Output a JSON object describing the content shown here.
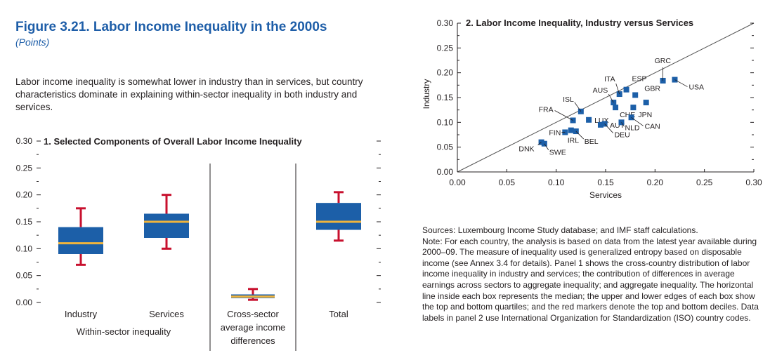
{
  "figure": {
    "title": "Figure 3.21.  Labor Income Inequality in the 2000s",
    "subtitle": "(Points)",
    "intro": "Labor income inequality is somewhat lower in industry than in services, but country characteristics dominate in explaining within-sector inequality in both industry and services."
  },
  "notes": {
    "sources": "Sources: Luxembourg Income Study database; and IMF staff calculations.",
    "note": "Note: For each country, the analysis is based on data from the latest year available during 2000–09. The measure of inequality used is generalized entropy based on disposable income (see Annex 3.4 for details). Panel 1 shows the cross-country distribution of labor income inequality in industry and services; the contribution of differences in average earnings across sectors to aggregate inequality; and aggregate inequality. The horizontal line inside each box represents the median; the upper and lower edges of each box show the top and bottom quartiles; and the red markers denote the top and bottom deciles. Data labels in panel 2 use International Organization for Standardization (ISO) country codes."
  },
  "colors": {
    "box": "#1c5fa8",
    "median": "#f0b43c",
    "whisker": "#c8102e",
    "marker": "#1c5fa8",
    "line": "#555555"
  },
  "chart_data": [
    {
      "type": "box",
      "title": "1. Selected Components of Overall Labor Income Inequality",
      "ylim": [
        0,
        0.3
      ],
      "yticks": [
        "0.00",
        "0.05",
        "0.10",
        "0.15",
        "0.20",
        "0.25",
        "0.30"
      ],
      "categories": [
        {
          "label": "Industry",
          "p10": 0.07,
          "q1": 0.09,
          "median": 0.11,
          "q3": 0.14,
          "p90": 0.175
        },
        {
          "label": "Services",
          "p10": 0.1,
          "q1": 0.12,
          "median": 0.15,
          "q3": 0.165,
          "p90": 0.2
        },
        {
          "label": "Cross-sector average income differences",
          "p10": 0.005,
          "q1": 0.008,
          "median": 0.011,
          "q3": 0.015,
          "p90": 0.025
        },
        {
          "label": "Total",
          "p10": 0.115,
          "q1": 0.135,
          "median": 0.15,
          "q3": 0.185,
          "p90": 0.205
        }
      ],
      "group_label": "Within-sector inequality",
      "category_lines": [
        "Industry",
        "Services",
        "Cross-sector|average income|differences",
        "Total"
      ]
    },
    {
      "type": "scatter",
      "title": "2. Labor Income Inequality, Industry versus Services",
      "xlabel": "Services",
      "ylabel": "Industry",
      "xlim": [
        0,
        0.3
      ],
      "ylim": [
        0,
        0.3
      ],
      "xticks": [
        "0.00",
        "0.05",
        "0.10",
        "0.15",
        "0.20",
        "0.25",
        "0.30"
      ],
      "yticks": [
        "0.00",
        "0.05",
        "0.10",
        "0.15",
        "0.20",
        "0.25",
        "0.30"
      ],
      "points": [
        {
          "label": "DNK",
          "x": 0.085,
          "y": 0.06
        },
        {
          "label": "SWE",
          "x": 0.088,
          "y": 0.057
        },
        {
          "label": "FIN",
          "x": 0.109,
          "y": 0.08
        },
        {
          "label": "IRL",
          "x": 0.115,
          "y": 0.084
        },
        {
          "label": "BEL",
          "x": 0.12,
          "y": 0.082
        },
        {
          "label": "FRA",
          "x": 0.117,
          "y": 0.104
        },
        {
          "label": "ISL",
          "x": 0.125,
          "y": 0.122
        },
        {
          "label": "LUX",
          "x": 0.133,
          "y": 0.105
        },
        {
          "label": "AUT",
          "x": 0.145,
          "y": 0.095
        },
        {
          "label": "DEU",
          "x": 0.149,
          "y": 0.097
        },
        {
          "label": "AUS",
          "x": 0.158,
          "y": 0.14
        },
        {
          "label": "ITA",
          "x": 0.164,
          "y": 0.157
        },
        {
          "label": "CHE",
          "x": 0.16,
          "y": 0.13
        },
        {
          "label": "NLD",
          "x": 0.166,
          "y": 0.1
        },
        {
          "label": "CAN",
          "x": 0.176,
          "y": 0.11
        },
        {
          "label": "JPN",
          "x": 0.178,
          "y": 0.13
        },
        {
          "label": "ESP",
          "x": 0.171,
          "y": 0.166
        },
        {
          "label": "GBR",
          "x": 0.18,
          "y": 0.155
        },
        {
          "label": "GRC",
          "x": 0.208,
          "y": 0.184
        },
        {
          "label": "USA",
          "x": 0.22,
          "y": 0.186
        },
        {
          "label": "",
          "x": 0.191,
          "y": 0.14
        }
      ],
      "reference_line": "45-degree"
    }
  ]
}
